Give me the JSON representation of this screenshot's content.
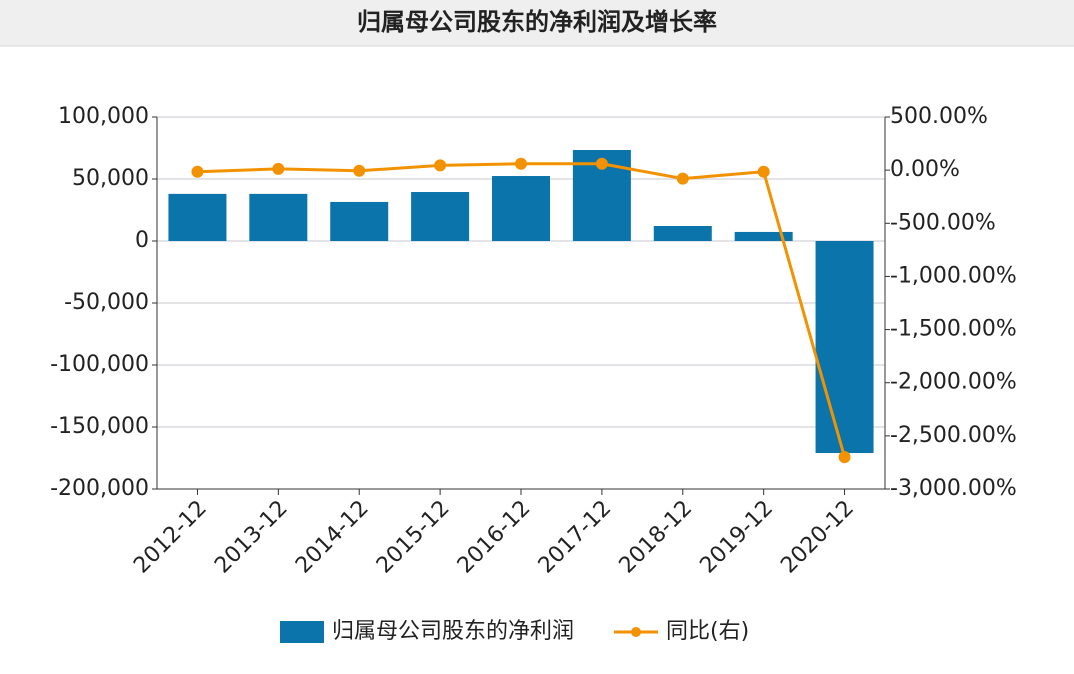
{
  "chart_data": {
    "type": "bar",
    "title": "归属母公司股东的净利润及增长率",
    "categories": [
      "2012-12",
      "2013-12",
      "2014-12",
      "2015-12",
      "2016-12",
      "2017-12",
      "2018-12",
      "2019-12",
      "2020-12"
    ],
    "series": [
      {
        "name": "归属母公司股东的净利润",
        "type": "bar",
        "color": "#0b74aa",
        "values": [
          38000,
          38000,
          31500,
          39500,
          52400,
          73400,
          12100,
          7300,
          -171000
        ]
      },
      {
        "name": "同比(右)",
        "type": "line",
        "axis": "y2",
        "color": "#f39200",
        "values": [
          -15,
          12,
          -6,
          45,
          60,
          60,
          -80,
          -15,
          -2700
        ]
      }
    ],
    "ylim": [
      -200000,
      100000
    ],
    "yticks": [
      {
        "value": -200000,
        "label": "-200,000"
      },
      {
        "value": -150000,
        "label": "-150,000"
      },
      {
        "value": -100000,
        "label": "-100,000"
      },
      {
        "value": -50000,
        "label": "-50,000"
      },
      0,
      {
        "value": 50000,
        "label": "50,000"
      },
      {
        "value": 100000,
        "label": "100,000"
      }
    ],
    "y2lim": [
      -3000,
      500
    ],
    "y2ticks": [
      {
        "value": -3000,
        "label": "-3,000.00%"
      },
      {
        "value": -2500,
        "label": "-2,500.00%"
      },
      {
        "value": -2000,
        "label": "-2,000.00%"
      },
      {
        "value": -1500,
        "label": "-1,500.00%"
      },
      {
        "value": -1000,
        "label": "-1,000.00%"
      },
      {
        "value": -500,
        "label": "-500.00%"
      },
      {
        "value": 0,
        "label": "0.00%"
      },
      {
        "value": 500,
        "label": "500.00%"
      }
    ],
    "grid": true,
    "legend": "bottom"
  }
}
